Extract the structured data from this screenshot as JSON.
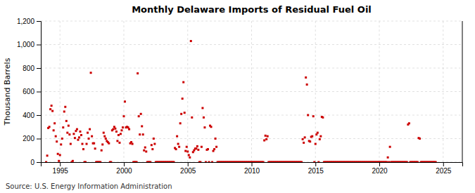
{
  "chart_data": {
    "type": "scatter",
    "title": "Monthly Delaware Imports of Residual Fuel Oil",
    "y_label": "Thousand Barrels",
    "annotations": [
      "Source: U.S. Energy Information Administration"
    ],
    "color": "#cc0000",
    "marker": "square",
    "grid": true,
    "xlim": [
      1993.5,
      2026.5
    ],
    "xticks": [
      1995,
      2000,
      2005,
      2010,
      2015,
      2020,
      2025
    ],
    "ylim": [
      0,
      1200
    ],
    "yticks": [
      0,
      200,
      400,
      600,
      800,
      {
        "value": 1000,
        "label": "1,000"
      },
      {
        "value": 1200,
        "label": "1,200"
      }
    ],
    "x": [
      1993.917,
      1994.0,
      1994.083,
      1994.167,
      1994.25,
      1994.333,
      1994.417,
      1994.5,
      1994.583,
      1994.667,
      1994.75,
      1994.833,
      1994.917,
      1995.0,
      1995.083,
      1995.167,
      1995.25,
      1995.333,
      1995.417,
      1995.5,
      1995.583,
      1995.667,
      1995.75,
      1995.833,
      1995.917,
      1996.0,
      1996.083,
      1996.167,
      1996.25,
      1996.333,
      1996.417,
      1996.5,
      1996.583,
      1996.667,
      1996.75,
      1996.833,
      1996.917,
      1997.0,
      1997.083,
      1997.167,
      1997.25,
      1997.333,
      1997.417,
      1997.5,
      1997.583,
      1997.667,
      1997.75,
      1997.833,
      1997.917,
      1998.0,
      1998.083,
      1998.167,
      1998.25,
      1998.333,
      1998.417,
      1998.5,
      1998.583,
      1998.667,
      1998.75,
      1998.833,
      1998.917,
      1999.0,
      1999.083,
      1999.167,
      1999.25,
      1999.333,
      1999.417,
      1999.5,
      1999.583,
      1999.667,
      1999.75,
      1999.833,
      1999.917,
      2000.0,
      2000.083,
      2000.167,
      2000.25,
      2000.333,
      2000.417,
      2000.5,
      2000.583,
      2000.667,
      2000.75,
      2000.833,
      2000.917,
      2001.0,
      2001.083,
      2001.167,
      2001.25,
      2001.333,
      2001.417,
      2001.5,
      2001.583,
      2001.667,
      2001.75,
      2001.833,
      2001.917,
      2002.0,
      2002.083,
      2002.167,
      2002.25,
      2002.333,
      2002.417,
      2002.5,
      2002.583,
      2002.667,
      2002.75,
      2002.833,
      2002.917,
      2003.0,
      2003.083,
      2003.167,
      2003.25,
      2003.333,
      2003.417,
      2003.5,
      2003.583,
      2003.667,
      2003.75,
      2003.833,
      2003.917,
      2004.0,
      2004.083,
      2004.167,
      2004.25,
      2004.333,
      2004.417,
      2004.5,
      2004.583,
      2004.667,
      2004.75,
      2004.833,
      2004.917,
      2005.0,
      2005.083,
      2005.167,
      2005.25,
      2005.333,
      2005.417,
      2005.5,
      2005.583,
      2005.667,
      2005.75,
      2005.833,
      2005.917,
      2006.0,
      2006.083,
      2006.167,
      2006.25,
      2006.333,
      2006.417,
      2006.5,
      2006.583,
      2006.667,
      2006.75,
      2006.833,
      2006.917,
      2007.0,
      2007.083,
      2007.167,
      2007.25,
      2007.333,
      2007.417,
      2007.5,
      2007.583,
      2007.667,
      2007.75,
      2007.833,
      2007.917,
      2008.0,
      2008.083,
      2008.167,
      2008.25,
      2008.333,
      2008.417,
      2008.5,
      2008.583,
      2008.667,
      2008.75,
      2008.833,
      2008.917,
      2009.0,
      2009.083,
      2009.167,
      2009.25,
      2009.333,
      2009.417,
      2009.5,
      2009.583,
      2009.667,
      2009.75,
      2009.833,
      2009.917,
      2010.0,
      2010.083,
      2010.167,
      2010.25,
      2010.333,
      2010.417,
      2010.5,
      2010.583,
      2010.667,
      2010.75,
      2010.833,
      2010.917,
      2011.0,
      2011.083,
      2011.167,
      2011.25,
      2011.333,
      2011.417,
      2011.5,
      2011.583,
      2011.667,
      2011.75,
      2011.833,
      2011.917,
      2012.0,
      2012.083,
      2012.167,
      2012.25,
      2012.333,
      2012.417,
      2012.5,
      2012.583,
      2012.667,
      2012.75,
      2012.833,
      2012.917,
      2013.0,
      2013.083,
      2013.167,
      2013.25,
      2013.333,
      2013.417,
      2013.5,
      2013.583,
      2013.667,
      2013.75,
      2013.833,
      2013.917,
      2014.0,
      2014.083,
      2014.167,
      2014.25,
      2014.333,
      2014.417,
      2014.5,
      2014.583,
      2014.667,
      2014.75,
      2014.833,
      2014.917,
      2015.0,
      2015.083,
      2015.167,
      2015.25,
      2015.333,
      2015.417,
      2015.5,
      2015.583,
      2015.667,
      2015.75,
      2015.833,
      2015.917,
      2016.0,
      2016.083,
      2016.167,
      2016.25,
      2016.333,
      2016.417,
      2016.5,
      2016.583,
      2016.667,
      2016.75,
      2016.833,
      2016.917,
      2017.0,
      2017.083,
      2017.167,
      2017.25,
      2017.333,
      2017.417,
      2017.5,
      2017.583,
      2017.667,
      2017.75,
      2017.833,
      2017.917,
      2018.0,
      2018.083,
      2018.167,
      2018.25,
      2018.333,
      2018.417,
      2018.5,
      2018.583,
      2018.667,
      2018.75,
      2018.833,
      2018.917,
      2019.0,
      2019.083,
      2019.167,
      2019.25,
      2019.333,
      2019.417,
      2019.5,
      2019.583,
      2019.667,
      2019.75,
      2019.833,
      2019.917,
      2020.0,
      2020.083,
      2020.167,
      2020.25,
      2020.333,
      2020.417,
      2020.5,
      2020.583,
      2020.667,
      2020.75,
      2020.833,
      2020.917,
      2021.0,
      2021.083,
      2021.167,
      2021.25,
      2021.333,
      2021.417,
      2021.5,
      2021.583,
      2021.667,
      2021.75,
      2021.833,
      2021.917,
      2022.0,
      2022.083,
      2022.167,
      2022.25,
      2022.333,
      2022.417,
      2022.5,
      2022.583,
      2022.667,
      2022.75,
      2022.833,
      2022.917,
      2023.0,
      2023.083,
      2023.167,
      2023.25,
      2023.333,
      2023.417,
      2023.5,
      2023.583,
      2023.667,
      2023.75,
      2023.833,
      2023.917,
      2024.0,
      2024.083,
      2024.167,
      2024.25,
      2024.333,
      2024.417
    ],
    "values": [
      0,
      55,
      290,
      300,
      450,
      480,
      435,
      270,
      330,
      220,
      175,
      70,
      10,
      60,
      150,
      200,
      295,
      430,
      470,
      350,
      250,
      310,
      235,
      155,
      0,
      10,
      240,
      205,
      265,
      280,
      190,
      210,
      260,
      230,
      155,
      110,
      0,
      0,
      155,
      250,
      200,
      280,
      760,
      220,
      160,
      160,
      115,
      0,
      0,
      0,
      0,
      0,
      100,
      150,
      250,
      220,
      200,
      180,
      170,
      160,
      0,
      0,
      270,
      280,
      300,
      285,
      260,
      180,
      230,
      165,
      240,
      270,
      295,
      390,
      515,
      295,
      300,
      295,
      280,
      160,
      170,
      155,
      0,
      0,
      0,
      0,
      755,
      390,
      235,
      410,
      305,
      235,
      100,
      125,
      90,
      0,
      0,
      0,
      0,
      145,
      110,
      200,
      155,
      0,
      0,
      0,
      0,
      0,
      0,
      0,
      0,
      0,
      0,
      0,
      0,
      0,
      0,
      0,
      0,
      0,
      0,
      120,
      110,
      220,
      155,
      130,
      330,
      410,
      540,
      680,
      420,
      95,
      130,
      90,
      60,
      40,
      1030,
      380,
      85,
      100,
      115,
      115,
      135,
      105,
      0,
      0,
      130,
      460,
      380,
      295,
      0,
      105,
      110,
      0,
      310,
      300,
      0,
      95,
      110,
      200,
      130,
      0,
      0,
      0,
      0,
      0,
      0,
      0,
      0,
      0,
      0,
      0,
      0,
      0,
      0,
      0,
      0,
      0,
      0,
      0,
      0,
      0,
      0,
      0,
      0,
      0,
      0,
      0,
      0,
      0,
      0,
      0,
      0,
      0,
      0,
      0,
      0,
      0,
      0,
      0,
      0,
      0,
      0,
      0,
      0,
      185,
      225,
      195,
      220,
      0,
      0,
      0,
      0,
      0,
      0,
      0,
      0,
      0,
      0,
      0,
      0,
      0,
      0,
      0,
      0,
      0,
      0,
      0,
      0,
      0,
      0,
      0,
      0,
      0,
      0,
      0,
      0,
      0,
      0,
      0,
      0,
      195,
      165,
      210,
      720,
      660,
      400,
      180,
      175,
      215,
      220,
      390,
      0,
      155,
      235,
      250,
      0,
      195,
      220,
      385,
      380,
      0,
      0,
      0,
      0,
      0,
      0,
      0,
      0,
      0,
      0,
      0,
      0,
      0,
      0,
      0,
      0,
      0,
      0,
      0,
      0,
      0,
      0,
      0,
      0,
      0,
      0,
      0,
      0,
      0,
      0,
      0,
      0,
      0,
      0,
      0,
      0,
      0,
      0,
      0,
      0,
      0,
      0,
      0,
      0,
      0,
      0,
      0,
      0,
      0,
      0,
      0,
      0,
      0,
      0,
      0,
      0,
      0,
      0,
      0,
      0,
      40,
      0,
      130,
      0,
      0,
      0,
      0,
      0,
      0,
      0,
      0,
      0,
      0,
      0,
      0,
      0,
      0,
      0,
      0,
      320,
      330,
      0,
      0,
      0,
      0,
      0,
      0,
      0,
      0,
      205,
      200,
      0,
      0,
      0,
      0,
      0,
      0,
      0,
      0,
      0,
      0,
      0,
      0,
      0,
      0,
      0
    ]
  }
}
